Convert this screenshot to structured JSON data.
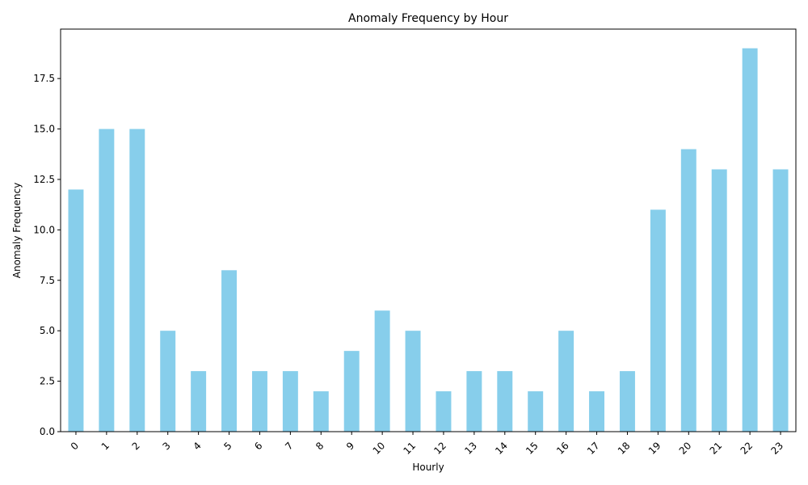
{
  "chart_data": {
    "type": "bar",
    "title": "Anomaly Frequency by Hour",
    "xlabel": "Hourly",
    "ylabel": "Anomaly Frequency",
    "categories": [
      "0",
      "1",
      "2",
      "3",
      "4",
      "5",
      "6",
      "7",
      "8",
      "9",
      "10",
      "11",
      "12",
      "13",
      "14",
      "15",
      "16",
      "17",
      "18",
      "19",
      "20",
      "21",
      "22",
      "23"
    ],
    "values": [
      12,
      15,
      15,
      5,
      3,
      8,
      3,
      3,
      2,
      4,
      6,
      5,
      2,
      3,
      3,
      2,
      5,
      2,
      3,
      11,
      14,
      13,
      19,
      13
    ],
    "ylim": [
      0,
      19.95
    ],
    "yticks": [
      "0.0",
      "2.5",
      "5.0",
      "7.5",
      "10.0",
      "12.5",
      "15.0",
      "17.5"
    ],
    "grid": false,
    "bar_color": "#87ceeb"
  }
}
